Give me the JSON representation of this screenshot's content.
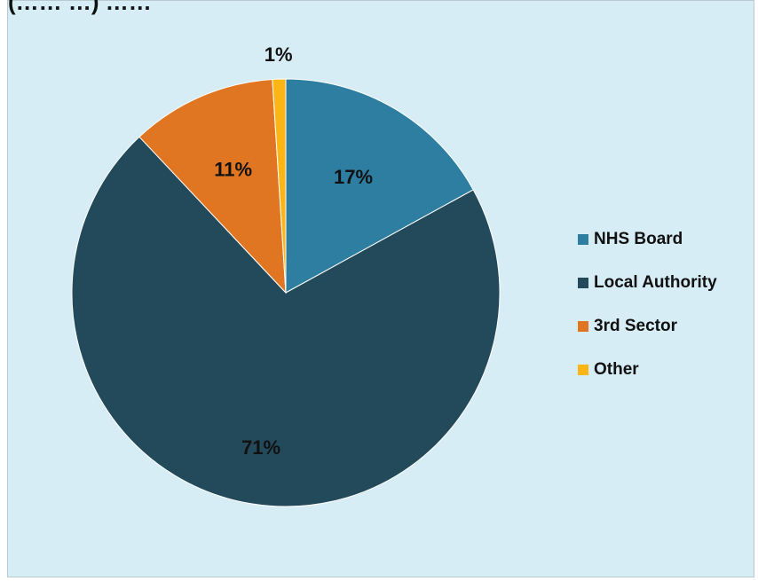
{
  "header_clip": "(…… …) ……",
  "chart_data": {
    "type": "pie",
    "title": "",
    "categories": [
      "NHS Board",
      "Local Authority",
      "3rd Sector",
      "Other"
    ],
    "values": [
      17,
      71,
      11,
      1
    ],
    "value_labels": [
      "17%",
      "71%",
      "11%",
      "1%"
    ],
    "colors": [
      "#2e7ea1",
      "#234a5a",
      "#e07522",
      "#fbb615"
    ],
    "legend_position": "right",
    "background_color": "#d6edf5"
  }
}
